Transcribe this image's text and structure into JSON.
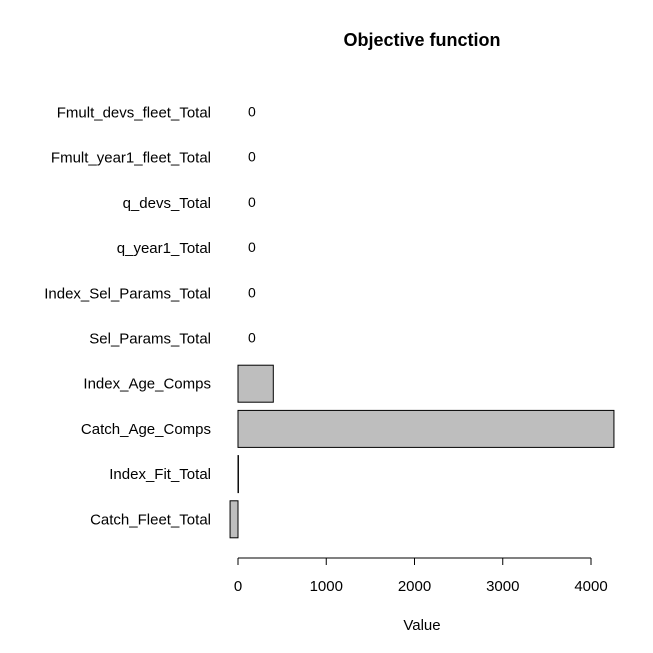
{
  "chart_data": {
    "type": "bar",
    "orientation": "horizontal",
    "title": "Objective function",
    "xlabel": "Value",
    "ylabel": "",
    "categories": [
      "Fmult_devs_fleet_Total",
      "Fmult_year1_fleet_Total",
      "q_devs_Total",
      "q_year1_Total",
      "Index_Sel_Params_Total",
      "Sel_Params_Total",
      "Index_Age_Comps",
      "Catch_Age_Comps",
      "Index_Fit_Total",
      "Catch_Fleet_Total"
    ],
    "values": [
      0,
      0,
      0,
      0,
      0,
      0,
      400,
      4260,
      5,
      -90
    ],
    "data_labels": [
      "0",
      "0",
      "0",
      "0",
      "0",
      "0",
      "",
      "",
      "",
      ""
    ],
    "xlim": [
      -100,
      4300
    ],
    "xticks": [
      0,
      1000,
      2000,
      3000,
      4000
    ],
    "bar_color": "#bebebe",
    "grid": false,
    "legend": "none"
  }
}
